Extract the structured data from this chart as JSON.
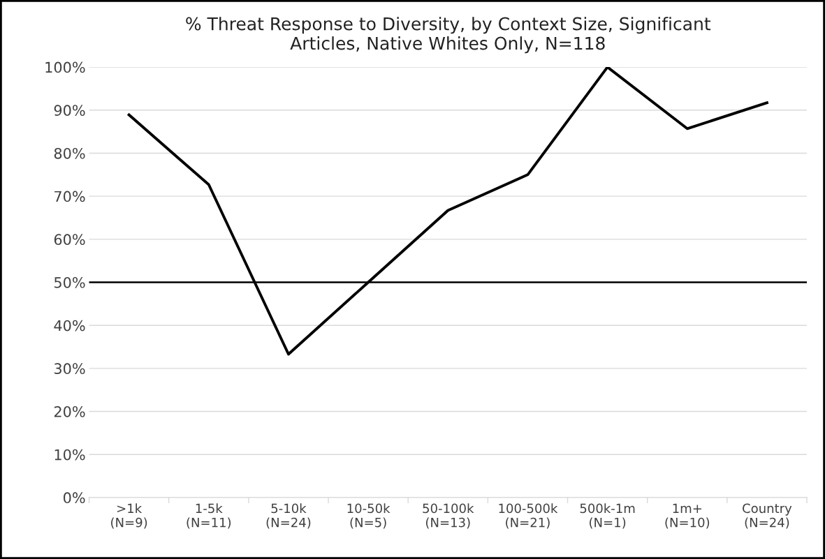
{
  "chart_data": {
    "type": "line",
    "title": "% Threat Response to Diversity, by Context Size, Significant\nArticles, Native Whites Only, N=118",
    "categories": [
      ">1k\n(N=9)",
      "1-5k\n(N=11)",
      "5-10k\n(N=24)",
      "10-50k\n(N=5)",
      "50-100k\n(N=13)",
      "100-500k\n(N=21)",
      "500k-1m\n(N=1)",
      "1m+\n(N=10)",
      "Country\n(N=24)"
    ],
    "series": [
      {
        "color": "#000000",
        "values": [
          88.9,
          72.7,
          33.3,
          50,
          66.7,
          75,
          100,
          85.7,
          91.7
        ]
      }
    ],
    "ylim": [
      0,
      100
    ],
    "yticks": [
      {
        "value": 0,
        "label": "0%"
      },
      {
        "value": 10,
        "label": "10%"
      },
      {
        "value": 20,
        "label": "20%"
      },
      {
        "value": 30,
        "label": "30%"
      },
      {
        "value": 40,
        "label": "40%"
      },
      {
        "value": 50,
        "label": "50%"
      },
      {
        "value": 60,
        "label": "60%"
      },
      {
        "value": 70,
        "label": "70%"
      },
      {
        "value": 80,
        "label": "80%"
      },
      {
        "value": 90,
        "label": "90%"
      },
      {
        "value": 100,
        "label": "100%"
      }
    ],
    "ref_lines": [
      {
        "axis": "y",
        "value": 50,
        "color": "#000000"
      }
    ],
    "grid": "y",
    "legend": false,
    "marker": "none",
    "line_style": "solid"
  }
}
